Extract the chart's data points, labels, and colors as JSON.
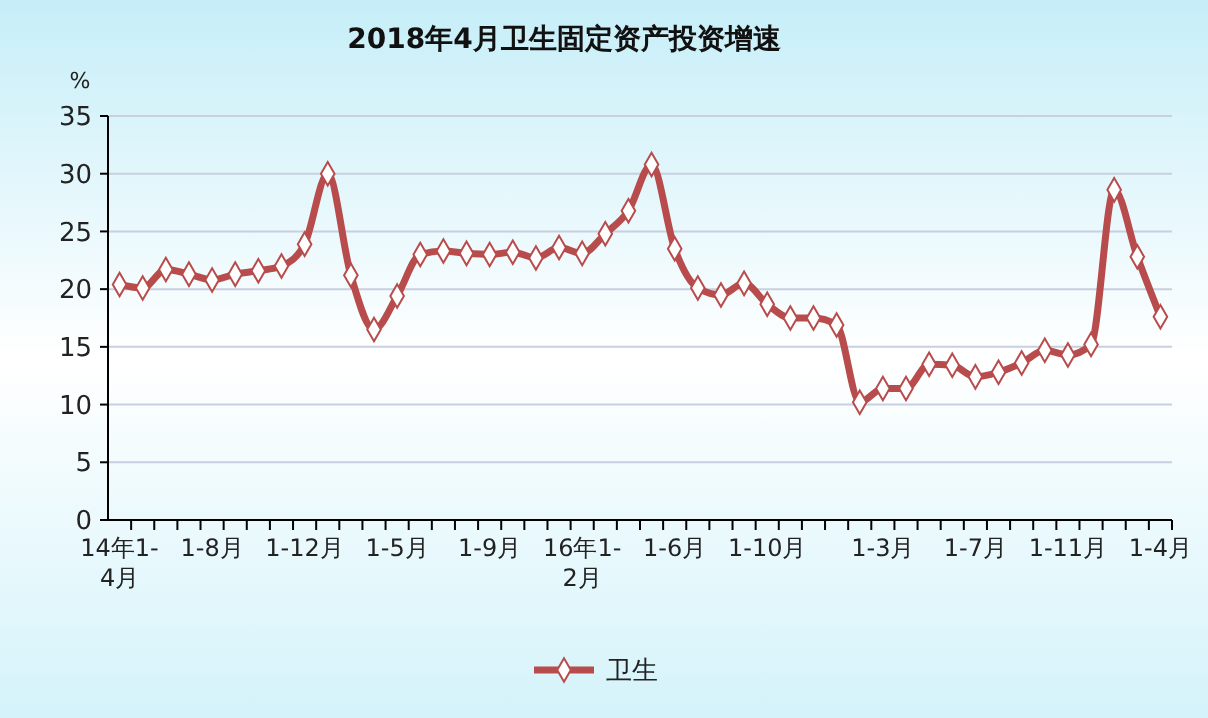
{
  "chart_data": {
    "type": "line",
    "title": "2018年4月卫生固定资产投资增速",
    "ylabel": "%",
    "categories": [
      "14年1-4月",
      null,
      null,
      null,
      "1-8月",
      null,
      null,
      null,
      "1-12月",
      null,
      null,
      null,
      "1-5月",
      null,
      null,
      null,
      "1-9月",
      null,
      null,
      null,
      "16年1-2月",
      null,
      null,
      null,
      "1-6月",
      null,
      null,
      null,
      "1-10月",
      null,
      null,
      null,
      null,
      "1-3月",
      null,
      null,
      null,
      "1-7月",
      null,
      null,
      null,
      "1-11月",
      null,
      null,
      null,
      "1-4月"
    ],
    "series": [
      {
        "name": "卫生",
        "color": "#b84c4c",
        "values": [
          20.4,
          20.1,
          21.7,
          21.3,
          20.8,
          21.3,
          21.6,
          22.0,
          23.9,
          30.0,
          21.2,
          16.5,
          19.4,
          23.0,
          23.3,
          23.1,
          23.0,
          23.2,
          22.7,
          23.6,
          23.1,
          24.8,
          26.8,
          30.8,
          23.5,
          20.1,
          19.5,
          20.5,
          18.7,
          17.5,
          17.5,
          16.9,
          10.2,
          11.4,
          11.4,
          13.5,
          13.4,
          12.4,
          12.8,
          13.6,
          14.7,
          14.3,
          15.2,
          28.6,
          22.8,
          17.6
        ]
      }
    ],
    "ylim": [
      0,
      35
    ],
    "yticks": [
      0,
      5,
      10,
      15,
      20,
      25,
      30,
      35
    ],
    "grid": "y",
    "legend": "bottom",
    "marker": "diamond",
    "line_style": "solid"
  }
}
